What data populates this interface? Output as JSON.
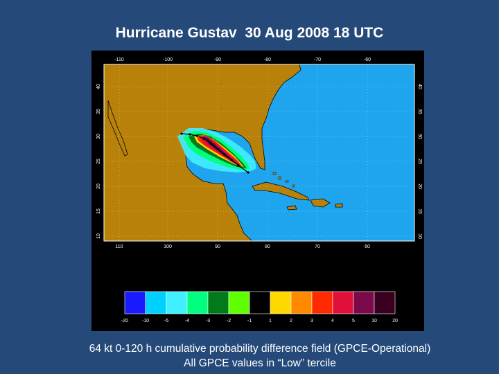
{
  "title": "Hurricane Gustav  30 Aug 2008 18 UTC",
  "map": {
    "top_lon_labels": [
      "-110",
      "-100",
      "-90",
      "-80",
      "-70",
      "-60"
    ],
    "bottom_lon_labels": [
      "110",
      "100",
      "90",
      "80",
      "70",
      "60"
    ],
    "left_lat_labels": [
      "40",
      "35",
      "30",
      "25",
      "20",
      "15",
      "10"
    ],
    "right_lat_labels": [
      "40",
      "35",
      "30",
      "25",
      "20",
      "15",
      "10"
    ],
    "colors": {
      "ocean": "#1ea5ee",
      "land": "#b8820a",
      "track": "#000000"
    }
  },
  "colorbar": {
    "swatches": [
      "#1a1aff",
      "#00d0ff",
      "#40f0ff",
      "#00ff80",
      "#007a1a",
      "#60ff00",
      "#000000",
      "#ffd800",
      "#ff8a00",
      "#ff2a00",
      "#e0103a",
      "#7a0a4a",
      "#3a0020"
    ],
    "tick_labels": [
      "-20",
      "-10",
      "-5",
      "-4",
      "-3",
      "-2",
      "-1",
      "1",
      "2",
      "3",
      "4",
      "5",
      "10",
      "20"
    ]
  },
  "caption": {
    "line1": "64 kt 0-120 h cumulative probability difference field (GPCE-Operational)",
    "line2": "All GPCE values in “Low” tercile"
  }
}
